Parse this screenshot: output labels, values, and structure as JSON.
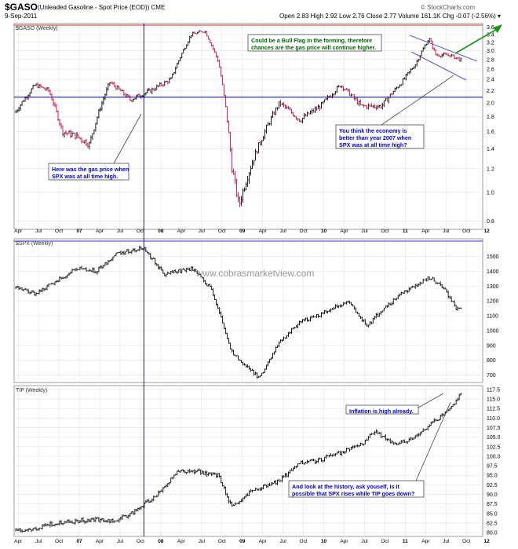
{
  "header": {
    "symbol": "$GASO",
    "description": "(Unleaded Gasoline - Spot Price (EOD)) CME",
    "date": "9-Sep-2011",
    "logo": "© StockCharts.com",
    "quote": "Open 2.83  High 2.92  Low 2.76  Close 2.77  Volume 161.1K  Chg -0.07 (-2.56%) ▾"
  },
  "chart_data": [
    {
      "type": "bar",
      "title": "$GASO (Weekly)",
      "ylim": [
        0.75,
        3.7
      ],
      "scale": "log",
      "yticks": [
        0.8,
        1.0,
        1.2,
        1.4,
        1.6,
        1.8,
        2.0,
        2.2,
        2.4,
        2.6,
        2.8,
        3.0,
        3.2,
        3.4,
        3.6
      ],
      "ytick_labels": [
        "0.8",
        "1.0",
        "1.2",
        "1.4",
        "1.6",
        "1.8",
        "2.0",
        "2.2",
        "2.4",
        "2.6",
        "2.8",
        "3.0",
        "3.2",
        "3.4",
        "3.6"
      ],
      "x": [
        "2006-03",
        "2006-06",
        "2006-08",
        "2006-10",
        "2006-12",
        "2007-02",
        "2007-05",
        "2007-08",
        "2007-11",
        "2008-02",
        "2008-05",
        "2008-07",
        "2008-09",
        "2008-11",
        "2008-12",
        "2009-03",
        "2009-06",
        "2009-09",
        "2009-12",
        "2010-03",
        "2010-06",
        "2010-09",
        "2010-12",
        "2011-02",
        "2011-04",
        "2011-05",
        "2011-07",
        "2011-09"
      ],
      "values": [
        1.85,
        2.3,
        2.2,
        1.6,
        1.55,
        1.45,
        2.35,
        2.05,
        2.2,
        2.4,
        3.4,
        3.5,
        2.75,
        1.2,
        0.9,
        1.45,
        2.0,
        1.75,
        1.95,
        2.3,
        1.95,
        1.95,
        2.35,
        2.7,
        3.3,
        2.9,
        2.9,
        2.77
      ],
      "hline": 2.09,
      "annotations": [
        "Could be a Bull Flag in the forming, therefore chances are the gas price will continue higher.",
        "You think the economy is better than year 2007 when SPX was at all time high?",
        "Here was the gas price when SPX was at all time high."
      ]
    },
    {
      "type": "bar",
      "title": "$SPX (Weekly)",
      "ylim": [
        650,
        1620
      ],
      "yticks": [
        700,
        800,
        900,
        1000,
        1100,
        1200,
        1300,
        1400,
        1500
      ],
      "ytick_labels": [
        "700",
        "800",
        "900",
        "1000",
        "1100",
        "1200",
        "1300",
        "1400",
        "1500"
      ],
      "x": [
        "2006-03",
        "2006-06",
        "2006-09",
        "2006-12",
        "2007-03",
        "2007-06",
        "2007-10",
        "2008-01",
        "2008-05",
        "2008-08",
        "2008-11",
        "2009-03",
        "2009-06",
        "2009-09",
        "2009-12",
        "2010-04",
        "2010-07",
        "2010-09",
        "2010-12",
        "2011-04",
        "2011-06",
        "2011-08",
        "2011-09"
      ],
      "values": [
        1290,
        1250,
        1330,
        1420,
        1400,
        1520,
        1560,
        1380,
        1420,
        1280,
        850,
        680,
        920,
        1060,
        1110,
        1200,
        1030,
        1140,
        1250,
        1360,
        1300,
        1150,
        1155
      ],
      "watermark": "www.cobrasmarketview.com"
    },
    {
      "type": "bar",
      "title": "TIP (Weekly)",
      "ylim": [
        79,
        118.5
      ],
      "yticks": [
        80.0,
        82.5,
        85.0,
        87.5,
        90.0,
        92.5,
        95.0,
        97.5,
        100.0,
        102.5,
        105.0,
        107.5,
        110.0,
        112.5,
        115.0,
        117.5
      ],
      "ytick_labels": [
        "80.0",
        "82.5",
        "85.0",
        "87.5",
        "90.0",
        "92.5",
        "95.0",
        "97.5",
        "100.0",
        "102.5",
        "105.0",
        "107.5",
        "110.0",
        "112.5",
        "115.0",
        "117.5"
      ],
      "x": [
        "2006-03",
        "2006-06",
        "2006-09",
        "2006-12",
        "2007-03",
        "2007-06",
        "2007-09",
        "2007-12",
        "2008-03",
        "2008-06",
        "2008-09",
        "2008-11",
        "2009-02",
        "2009-06",
        "2009-09",
        "2009-12",
        "2010-03",
        "2010-06",
        "2010-08",
        "2010-11",
        "2011-02",
        "2011-04",
        "2011-07",
        "2011-09"
      ],
      "values": [
        80.5,
        81.0,
        82.5,
        83.0,
        83.5,
        83.0,
        86.0,
        90.0,
        96.0,
        96.0,
        95.0,
        86.5,
        91.0,
        93.5,
        98.5,
        99.0,
        101.0,
        103.0,
        106.5,
        103.0,
        105.0,
        108.0,
        112.0,
        117.0
      ],
      "annotations": [
        "Inflation is high already.",
        "And look at the history, ask youself, is it possible that SPX rises while TIP goes down?"
      ]
    }
  ],
  "xaxis_labels": [
    "Apr",
    "Jul",
    "Oct",
    "07",
    "Apr",
    "Jul",
    "Oct",
    "08",
    "Apr",
    "Jul",
    "Oct",
    "09",
    "Apr",
    "Jul",
    "Oct",
    "10",
    "Apr",
    "Jul",
    "Oct",
    "11",
    "Apr",
    "Jul",
    "Oct",
    "12"
  ],
  "colors": {
    "up": "#000000",
    "down": "#cc0033",
    "hline": "#0000aa",
    "green_arrow": "#119911",
    "note_text": "#0000cc",
    "green_text": "#006600"
  }
}
